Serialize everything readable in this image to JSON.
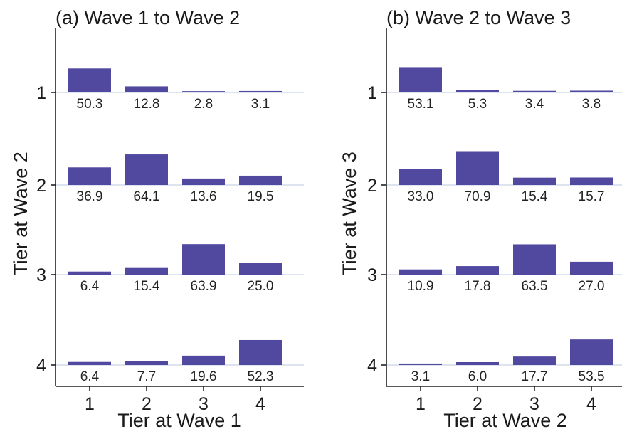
{
  "chart_data": [
    {
      "type": "bar",
      "title": "(a) Wave 1 to Wave 2",
      "xlabel": "Tier at Wave 1",
      "ylabel": "Tier at Wave 2",
      "categories": [
        "1",
        "2",
        "3",
        "4"
      ],
      "rows": [
        "1",
        "2",
        "3",
        "4"
      ],
      "bar_color": "#5149a0",
      "series": [
        {
          "values": [
            50.3,
            12.8,
            2.8,
            3.1
          ],
          "labels": [
            "50.3",
            "12.8",
            "2.8",
            "3.1"
          ]
        },
        {
          "values": [
            36.9,
            64.1,
            13.6,
            19.5
          ],
          "labels": [
            "36.9",
            "64.1",
            "13.6",
            "19.5"
          ]
        },
        {
          "values": [
            6.4,
            15.4,
            63.9,
            25.0
          ],
          "labels": [
            "6.4",
            "15.4",
            "63.9",
            "25.0"
          ]
        },
        {
          "values": [
            6.4,
            7.7,
            19.6,
            52.3
          ],
          "labels": [
            "6.4",
            "7.7",
            "19.6",
            "52.3"
          ]
        }
      ]
    },
    {
      "type": "bar",
      "title": "(b) Wave 2 to Wave 3",
      "xlabel": "Tier at Wave 2",
      "ylabel": "Tier at Wave 3",
      "categories": [
        "1",
        "2",
        "3",
        "4"
      ],
      "rows": [
        "1",
        "2",
        "3",
        "4"
      ],
      "bar_color": "#5149a0",
      "series": [
        {
          "values": [
            53.1,
            5.3,
            3.4,
            3.8
          ],
          "labels": [
            "53.1",
            "5.3",
            "3.4",
            "3.8"
          ]
        },
        {
          "values": [
            33.0,
            70.9,
            15.4,
            15.7
          ],
          "labels": [
            "33.0",
            "70.9",
            "15.4",
            "15.7"
          ]
        },
        {
          "values": [
            10.9,
            17.8,
            63.5,
            27.0
          ],
          "labels": [
            "10.9",
            "17.8",
            "63.5",
            "27.0"
          ]
        },
        {
          "values": [
            3.1,
            6.0,
            17.7,
            53.5
          ],
          "labels": [
            "3.1",
            "6.0",
            "17.7",
            "53.5"
          ]
        }
      ]
    }
  ]
}
